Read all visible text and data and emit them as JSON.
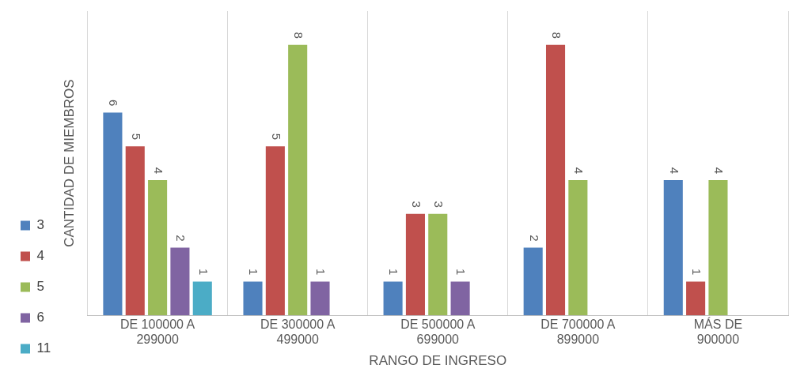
{
  "chart_data": {
    "type": "bar",
    "xlabel": "RANGO DE INGRESO",
    "ylabel": "CANTIDAD DE MIEMBROS",
    "categories": [
      "DE 100000 A 299000",
      "DE 300000 A 499000",
      "DE 500000 A 699000",
      "DE 700000 A 899000",
      "MÁS DE 900000"
    ],
    "series": [
      {
        "name": "3",
        "color": "#4f81bd",
        "values": [
          6,
          1,
          1,
          2,
          4
        ]
      },
      {
        "name": "4",
        "color": "#c0504d",
        "values": [
          5,
          5,
          3,
          8,
          1
        ]
      },
      {
        "name": "5",
        "color": "#9bbb59",
        "values": [
          4,
          8,
          3,
          4,
          4
        ]
      },
      {
        "name": "6",
        "color": "#8064a2",
        "values": [
          2,
          1,
          1,
          null,
          null
        ]
      },
      {
        "name": "11",
        "color": "#4bacc6",
        "values": [
          1,
          null,
          null,
          null,
          null
        ]
      }
    ],
    "ylim": [
      0,
      9
    ],
    "data_labels": true,
    "grid": "x",
    "legend": "left",
    "tick_labels": "x"
  }
}
